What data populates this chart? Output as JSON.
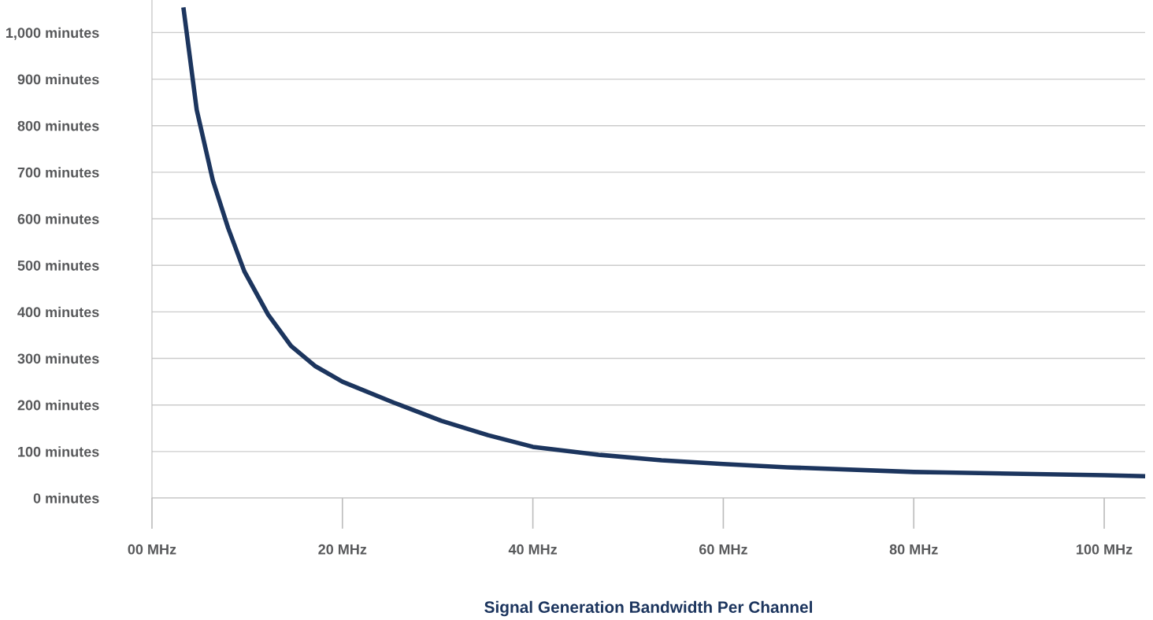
{
  "chart_data": {
    "type": "line",
    "xlabel": "Signal Generation Bandwidth Per Channel",
    "x": [
      3.3,
      4.7,
      6.4,
      8.0,
      9.7,
      12.2,
      14.6,
      17.1,
      20,
      25.4,
      30.4,
      35.3,
      40,
      46.9,
      53.5,
      60,
      66.7,
      80,
      83.3,
      100,
      104.3
    ],
    "series": [
      {
        "color": "#1c355e",
        "values": [
          1054,
          834,
          682,
          580,
          487,
          394,
          327,
          284,
          250,
          205,
          166,
          135,
          110,
          93,
          81,
          73,
          66,
          56,
          55,
          49,
          47
        ]
      }
    ],
    "xlim": [
      0,
      104.3
    ],
    "ylim": [
      0,
      1070
    ],
    "xticks": [
      {
        "value": 0,
        "label": "00 MHz"
      },
      {
        "value": 20,
        "label": "20 MHz"
      },
      {
        "value": 40,
        "label": "40 MHz"
      },
      {
        "value": 60,
        "label": "60 MHz"
      },
      {
        "value": 80,
        "label": "80 MHz"
      },
      {
        "value": 100,
        "label": "100 MHz"
      }
    ],
    "yticks": [
      {
        "value": 0,
        "label": "0 minutes"
      },
      {
        "value": 100,
        "label": "100 minutes"
      },
      {
        "value": 200,
        "label": "200 minutes"
      },
      {
        "value": 300,
        "label": "300 minutes"
      },
      {
        "value": 400,
        "label": "400 minutes"
      },
      {
        "value": 500,
        "label": "500 minutes"
      },
      {
        "value": 600,
        "label": "600 minutes"
      },
      {
        "value": 700,
        "label": "700 minutes"
      },
      {
        "value": 800,
        "label": "800 minutes"
      },
      {
        "value": 900,
        "label": "900 minutes"
      },
      {
        "value": 1000,
        "label": "1,000 minutes"
      }
    ],
    "grid": "y",
    "marker": "none",
    "line_style": "solid"
  }
}
